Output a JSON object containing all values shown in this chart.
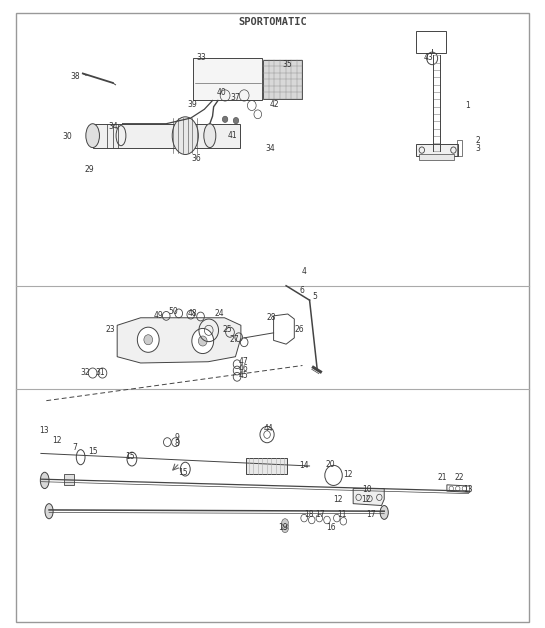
{
  "title": "SPORTOMATIC",
  "bg_color": "#ffffff",
  "border_color": "#888888",
  "line_color": "#444444",
  "text_color": "#333333",
  "fig_width": 5.45,
  "fig_height": 6.28,
  "dpi": 100
}
